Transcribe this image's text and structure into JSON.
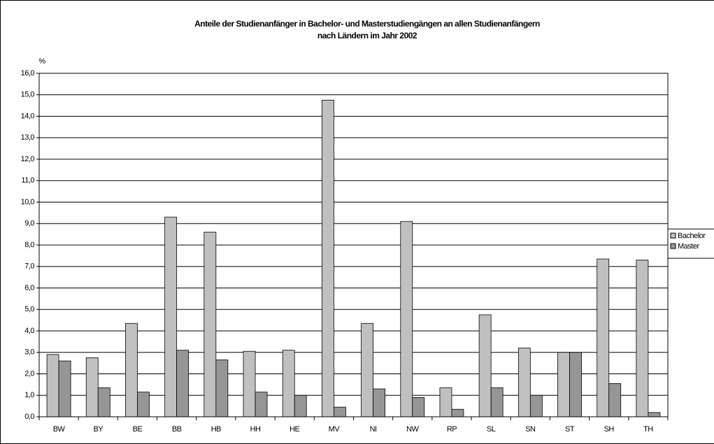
{
  "chart_data": {
    "type": "bar",
    "title": [
      "Anteile der Studienanfänger in Bachelor- und Masterstudiengängen an allen Studienanfängern",
      "nach Ländern im Jahr 2002"
    ],
    "y_label": "%",
    "categories": [
      "BW",
      "BY",
      "BE",
      "BB",
      "HB",
      "HH",
      "HE",
      "MV",
      "NI",
      "NW",
      "RP",
      "SL",
      "SN",
      "ST",
      "SH",
      "TH"
    ],
    "series": [
      {
        "name": "Bachelor",
        "color": "#c0c0c0",
        "values": [
          2.9,
          2.75,
          4.35,
          9.3,
          8.6,
          3.05,
          3.1,
          14.75,
          4.35,
          9.1,
          1.35,
          4.75,
          3.2,
          3.0,
          7.35,
          7.3
        ]
      },
      {
        "name": "Master",
        "color": "#969696",
        "values": [
          2.6,
          1.35,
          1.15,
          3.1,
          2.65,
          1.15,
          1.0,
          0.45,
          1.3,
          0.9,
          0.35,
          1.35,
          1.0,
          3.0,
          1.55,
          0.2
        ]
      }
    ],
    "ylim": [
      0,
      16
    ],
    "yticks": [
      {
        "value": 0,
        "label": "0,0"
      },
      {
        "value": 1,
        "label": "1,0"
      },
      {
        "value": 2,
        "label": "2,0"
      },
      {
        "value": 3,
        "label": "3,0"
      },
      {
        "value": 4,
        "label": "4,0"
      },
      {
        "value": 5,
        "label": "5,0"
      },
      {
        "value": 6,
        "label": "6,0"
      },
      {
        "value": 7,
        "label": "7,0"
      },
      {
        "value": 8,
        "label": "8,0"
      },
      {
        "value": 9,
        "label": "9,0"
      },
      {
        "value": 10,
        "label": "10,0"
      },
      {
        "value": 11,
        "label": "11,0"
      },
      {
        "value": 12,
        "label": "12,0"
      },
      {
        "value": 13,
        "label": "13,0"
      },
      {
        "value": 14,
        "label": "14,0"
      },
      {
        "value": 15,
        "label": "15,0"
      },
      {
        "value": 16,
        "label": "16,0"
      }
    ],
    "grid": true,
    "legend": "right"
  }
}
